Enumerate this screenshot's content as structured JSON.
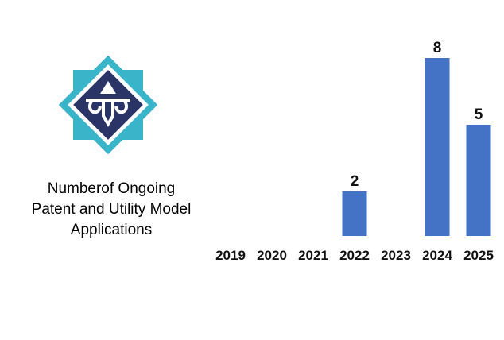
{
  "chart_data": {
    "type": "bar",
    "title": "Numberof Ongoing\nPatent and Utility Model\nApplications",
    "categories": [
      "2019",
      "2020",
      "2021",
      "2022",
      "2023",
      "2024",
      "2025"
    ],
    "values": [
      null,
      null,
      null,
      2,
      null,
      8,
      5
    ],
    "color": "#4472c4"
  }
}
